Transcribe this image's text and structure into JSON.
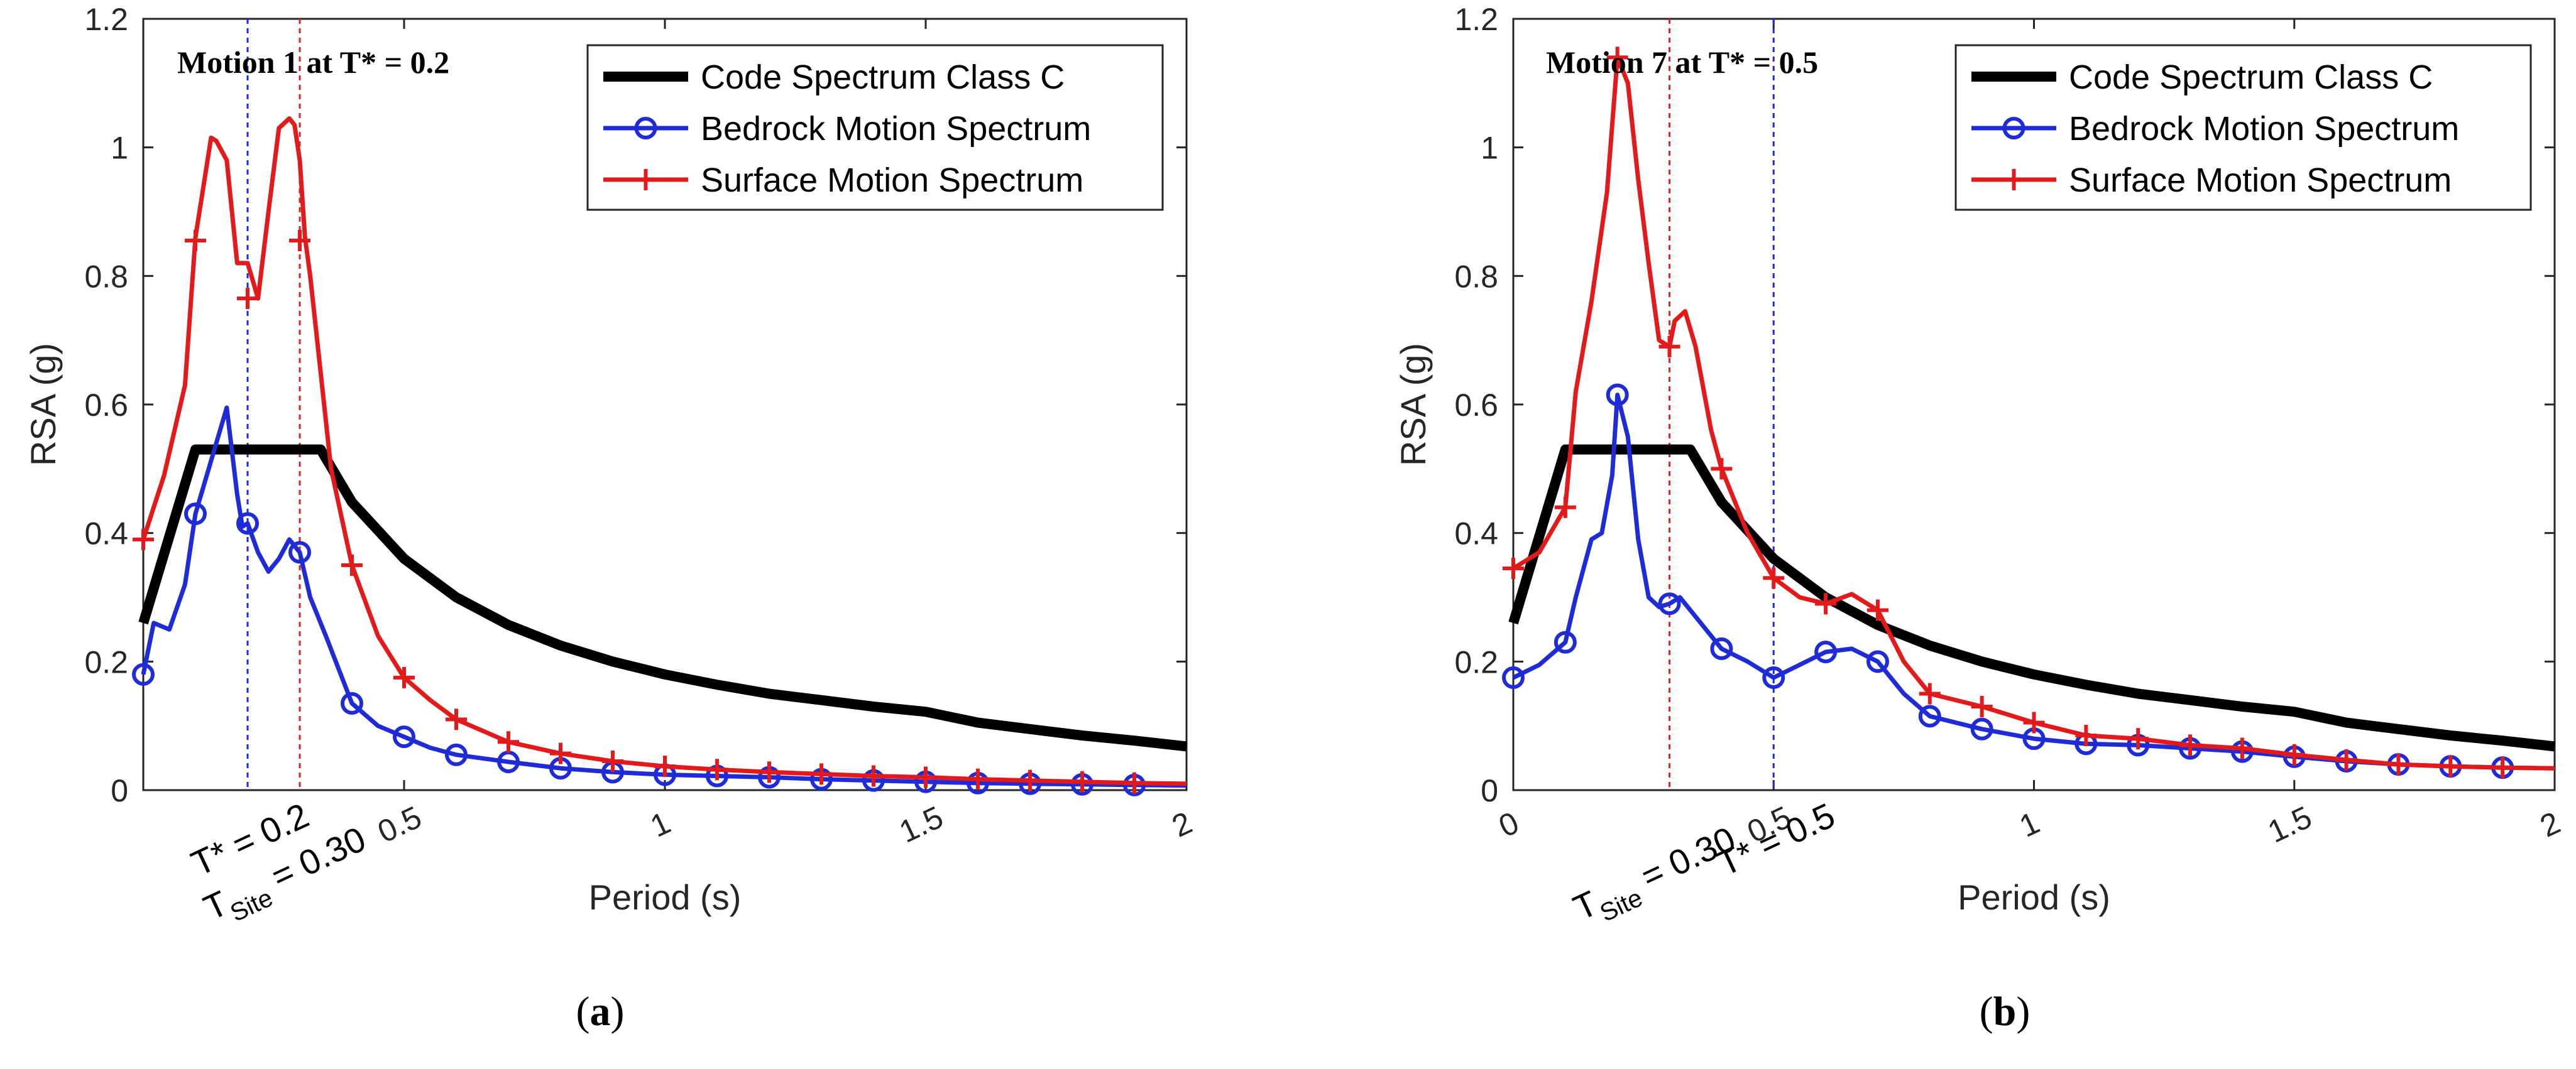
{
  "chart_data": [
    {
      "type": "line",
      "panel": "a",
      "caption_letter": "a",
      "title": "Motion 1 at T* = 0.2",
      "xlabel": "Period (s)",
      "ylabel": "RSA (g)",
      "xlim": [
        0,
        2
      ],
      "ylim": [
        0,
        1.2
      ],
      "xticks": [
        0.5,
        1,
        1.5,
        2
      ],
      "xtick_labels": [
        "0.5",
        "1",
        "1.5",
        "2"
      ],
      "yticks": [
        0,
        0.2,
        0.4,
        0.6,
        0.8,
        1,
        1.2
      ],
      "ytick_labels": [
        "0",
        "0.2",
        "0.4",
        "0.6",
        "0.8",
        "1",
        "1.2"
      ],
      "legend_position": "top-right",
      "vlines": [
        {
          "x": 0.2,
          "color": "#1f2bd6",
          "label_main": "T* = 0.2",
          "label_sub": ""
        },
        {
          "x": 0.3,
          "color": "#d62728",
          "label_main": "T",
          "label_sub": "Site",
          "label_tail": " = 0.30"
        }
      ],
      "series": [
        {
          "name": "Code Spectrum Class C",
          "color": "#000000",
          "marker": "none",
          "x": [
            0,
            0.1,
            0.34,
            0.4,
            0.5,
            0.6,
            0.7,
            0.8,
            0.9,
            1.0,
            1.1,
            1.2,
            1.3,
            1.4,
            1.5,
            1.6,
            1.7,
            1.8,
            1.9,
            2.0
          ],
          "y": [
            0.26,
            0.53,
            0.53,
            0.448,
            0.36,
            0.3,
            0.257,
            0.225,
            0.2,
            0.18,
            0.164,
            0.15,
            0.14,
            0.13,
            0.122,
            0.105,
            0.095,
            0.085,
            0.077,
            0.068
          ]
        },
        {
          "name": "Bedrock Motion Spectrum",
          "color": "#1f2bd6",
          "marker": "circle",
          "x": [
            0,
            0.02,
            0.05,
            0.08,
            0.1,
            0.14,
            0.16,
            0.18,
            0.19,
            0.2,
            0.22,
            0.24,
            0.26,
            0.28,
            0.3,
            0.32,
            0.35,
            0.4,
            0.45,
            0.5,
            0.55,
            0.6,
            0.7,
            0.8,
            0.9,
            1.0,
            1.1,
            1.2,
            1.3,
            1.4,
            1.5,
            1.6,
            1.7,
            1.8,
            1.9,
            2.0
          ],
          "y": [
            0.18,
            0.26,
            0.25,
            0.32,
            0.43,
            0.54,
            0.595,
            0.46,
            0.41,
            0.415,
            0.37,
            0.34,
            0.36,
            0.39,
            0.37,
            0.3,
            0.24,
            0.135,
            0.1,
            0.083,
            0.066,
            0.055,
            0.044,
            0.034,
            0.028,
            0.024,
            0.022,
            0.02,
            0.017,
            0.015,
            0.013,
            0.011,
            0.01,
            0.009,
            0.008,
            0.007
          ],
          "marker_x": [
            0,
            0.1,
            0.2,
            0.3,
            0.4,
            0.5,
            0.6,
            0.7,
            0.8,
            0.9,
            1.0,
            1.1,
            1.2,
            1.3,
            1.4,
            1.5,
            1.6,
            1.7,
            1.8,
            1.9
          ]
        },
        {
          "name": "Surface Motion Spectrum",
          "color": "#e31a1c",
          "marker": "plus",
          "x": [
            0,
            0.04,
            0.08,
            0.1,
            0.13,
            0.14,
            0.16,
            0.18,
            0.2,
            0.22,
            0.24,
            0.26,
            0.28,
            0.29,
            0.3,
            0.31,
            0.32,
            0.34,
            0.36,
            0.4,
            0.45,
            0.5,
            0.55,
            0.6,
            0.7,
            0.8,
            0.9,
            1.0,
            1.1,
            1.2,
            1.3,
            1.4,
            1.5,
            1.6,
            1.7,
            1.8,
            1.9,
            2.0
          ],
          "y": [
            0.39,
            0.49,
            0.63,
            0.86,
            1.015,
            1.01,
            0.98,
            0.82,
            0.82,
            0.765,
            0.9,
            1.03,
            1.045,
            1.035,
            0.98,
            0.86,
            0.8,
            0.65,
            0.5,
            0.35,
            0.24,
            0.175,
            0.14,
            0.11,
            0.075,
            0.057,
            0.045,
            0.037,
            0.032,
            0.028,
            0.025,
            0.022,
            0.02,
            0.017,
            0.015,
            0.013,
            0.011,
            0.01
          ],
          "marker_x": [
            0,
            0.1,
            0.2,
            0.3,
            0.4,
            0.5,
            0.6,
            0.7,
            0.8,
            0.9,
            1.0,
            1.1,
            1.2,
            1.3,
            1.4,
            1.5,
            1.6,
            1.7,
            1.8,
            1.9
          ],
          "marker_y_override": {
            "0.1": 0.855,
            "0.2": 0.765,
            "0.3": 0.855
          }
        }
      ]
    },
    {
      "type": "line",
      "panel": "b",
      "caption_letter": "b",
      "title": "Motion 7 at T* = 0.5",
      "xlabel": "Period (s)",
      "ylabel": "RSA (g)",
      "xlim": [
        0,
        2
      ],
      "ylim": [
        0,
        1.2
      ],
      "xticks": [
        0,
        0.5,
        1,
        1.5,
        2
      ],
      "xtick_labels": [
        "0",
        "0.5",
        "1",
        "1.5",
        "2"
      ],
      "yticks": [
        0,
        0.2,
        0.4,
        0.6,
        0.8,
        1,
        1.2
      ],
      "ytick_labels": [
        "0",
        "0.2",
        "0.4",
        "0.6",
        "0.8",
        "1",
        "1.2"
      ],
      "legend_position": "top-right",
      "vlines": [
        {
          "x": 0.3,
          "color": "#d62728",
          "label_main": "T",
          "label_sub": "Site",
          "label_tail": " = 0.30"
        },
        {
          "x": 0.5,
          "color": "#1f2bd6",
          "label_main": "T* = 0.5",
          "label_sub": ""
        }
      ],
      "series": [
        {
          "name": "Code Spectrum Class C",
          "color": "#000000",
          "marker": "none",
          "x": [
            0,
            0.1,
            0.34,
            0.4,
            0.5,
            0.6,
            0.7,
            0.8,
            0.9,
            1.0,
            1.1,
            1.2,
            1.3,
            1.4,
            1.5,
            1.6,
            1.7,
            1.8,
            1.9,
            2.0
          ],
          "y": [
            0.26,
            0.53,
            0.53,
            0.448,
            0.36,
            0.3,
            0.257,
            0.225,
            0.2,
            0.18,
            0.164,
            0.15,
            0.14,
            0.13,
            0.122,
            0.105,
            0.095,
            0.085,
            0.077,
            0.068
          ]
        },
        {
          "name": "Bedrock Motion Spectrum",
          "color": "#1f2bd6",
          "marker": "circle",
          "x": [
            0,
            0.05,
            0.1,
            0.12,
            0.15,
            0.17,
            0.19,
            0.2,
            0.22,
            0.24,
            0.26,
            0.28,
            0.3,
            0.32,
            0.35,
            0.4,
            0.45,
            0.5,
            0.55,
            0.6,
            0.65,
            0.7,
            0.75,
            0.8,
            0.9,
            1.0,
            1.1,
            1.2,
            1.3,
            1.4,
            1.5,
            1.6,
            1.7,
            1.8,
            1.9,
            2.0
          ],
          "y": [
            0.175,
            0.195,
            0.23,
            0.3,
            0.39,
            0.4,
            0.49,
            0.615,
            0.55,
            0.39,
            0.3,
            0.285,
            0.29,
            0.3,
            0.27,
            0.22,
            0.2,
            0.175,
            0.195,
            0.215,
            0.22,
            0.2,
            0.15,
            0.115,
            0.095,
            0.08,
            0.072,
            0.07,
            0.065,
            0.06,
            0.052,
            0.045,
            0.04,
            0.037,
            0.035,
            0.034
          ],
          "marker_x": [
            0,
            0.1,
            0.2,
            0.3,
            0.4,
            0.5,
            0.6,
            0.7,
            0.8,
            0.9,
            1.0,
            1.1,
            1.2,
            1.3,
            1.4,
            1.5,
            1.6,
            1.7,
            1.8,
            1.9
          ]
        },
        {
          "name": "Surface Motion Spectrum",
          "color": "#e31a1c",
          "marker": "plus",
          "x": [
            0,
            0.05,
            0.1,
            0.12,
            0.15,
            0.18,
            0.2,
            0.22,
            0.24,
            0.26,
            0.28,
            0.3,
            0.31,
            0.33,
            0.35,
            0.38,
            0.4,
            0.45,
            0.5,
            0.55,
            0.6,
            0.65,
            0.7,
            0.75,
            0.8,
            0.9,
            1.0,
            1.1,
            1.2,
            1.3,
            1.4,
            1.5,
            1.6,
            1.7,
            1.8,
            1.9,
            2.0
          ],
          "y": [
            0.345,
            0.37,
            0.44,
            0.62,
            0.76,
            0.93,
            1.14,
            1.1,
            0.95,
            0.82,
            0.7,
            0.69,
            0.73,
            0.745,
            0.69,
            0.56,
            0.5,
            0.4,
            0.33,
            0.3,
            0.29,
            0.305,
            0.28,
            0.2,
            0.15,
            0.13,
            0.105,
            0.085,
            0.08,
            0.07,
            0.065,
            0.055,
            0.047,
            0.04,
            0.037,
            0.035,
            0.034
          ],
          "marker_x": [
            0,
            0.1,
            0.2,
            0.3,
            0.4,
            0.5,
            0.6,
            0.7,
            0.8,
            0.9,
            1.0,
            1.1,
            1.2,
            1.3,
            1.4,
            1.5,
            1.6,
            1.7,
            1.8,
            1.9
          ]
        }
      ]
    }
  ]
}
